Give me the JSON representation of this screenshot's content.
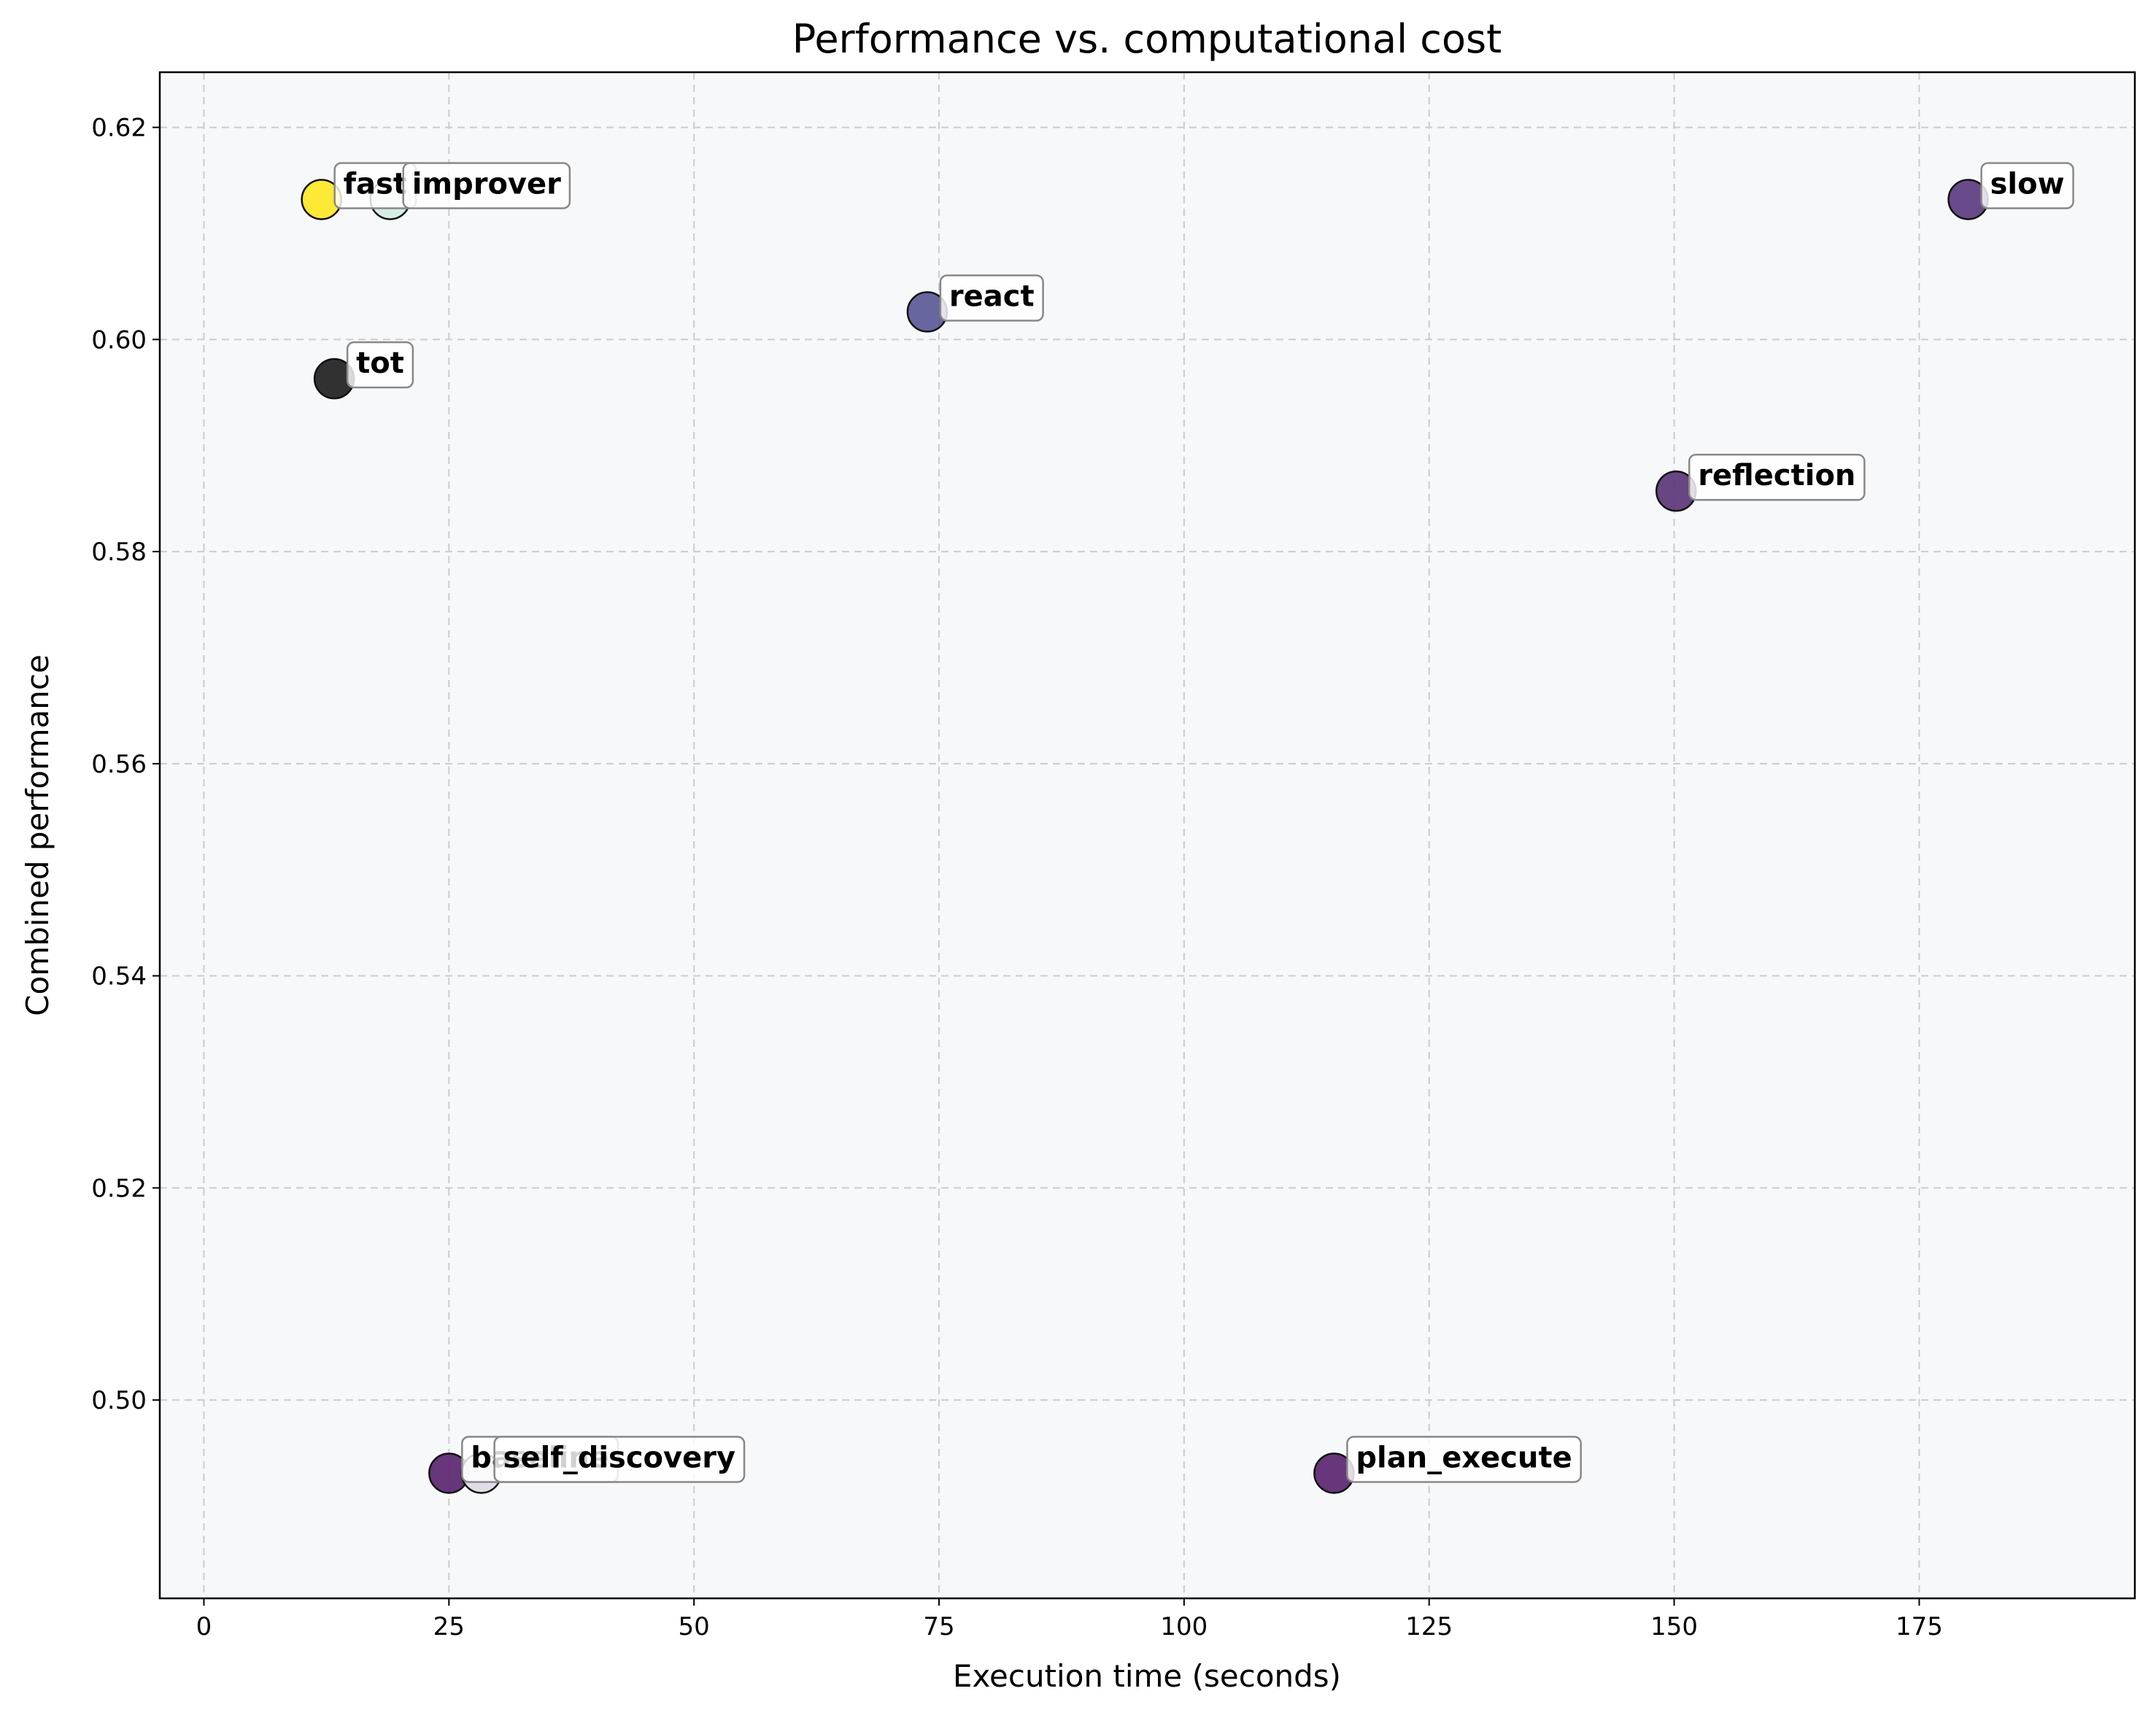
{
  "chart_data": {
    "type": "scatter",
    "title": "Performance vs. computational cost",
    "xlabel": "Execution time (seconds)",
    "ylabel": "Combined performance",
    "xlim": [
      -4.5,
      197
    ],
    "ylim": [
      0.4813,
      0.6252
    ],
    "xticks": [
      0,
      25,
      50,
      75,
      100,
      125,
      150,
      175
    ],
    "yticks": [
      0.5,
      0.52,
      0.54,
      0.56,
      0.58,
      0.6,
      0.62
    ],
    "xtick_labels": [
      "0",
      "25",
      "50",
      "75",
      "100",
      "125",
      "150",
      "175"
    ],
    "ytick_labels": [
      "0.50",
      "0.52",
      "0.54",
      "0.56",
      "0.58",
      "0.60",
      "0.62"
    ],
    "grid": true,
    "background": "#f7f8fa",
    "points": [
      {
        "label": "fast",
        "x": 12.0,
        "y": 0.6132,
        "color": "#fde725"
      },
      {
        "label": "improver",
        "x": 19.0,
        "y": 0.6132,
        "color": "#d3ece3"
      },
      {
        "label": "tot",
        "x": 13.3,
        "y": 0.5963,
        "color": "#202020"
      },
      {
        "label": "react",
        "x": 73.8,
        "y": 0.6026,
        "color": "#5a5996"
      },
      {
        "label": "slow",
        "x": 180.0,
        "y": 0.6132,
        "color": "#5c3b80"
      },
      {
        "label": "reflection",
        "x": 150.2,
        "y": 0.5857,
        "color": "#5b3678"
      },
      {
        "label": "baseline",
        "x": 25.0,
        "y": 0.4931,
        "color": "#5a2570"
      },
      {
        "label": "self_discovery",
        "x": 28.3,
        "y": 0.4931,
        "color": "#e1d8e6"
      },
      {
        "label": "plan_execute",
        "x": 115.3,
        "y": 0.4931,
        "color": "#5a2570"
      }
    ]
  }
}
